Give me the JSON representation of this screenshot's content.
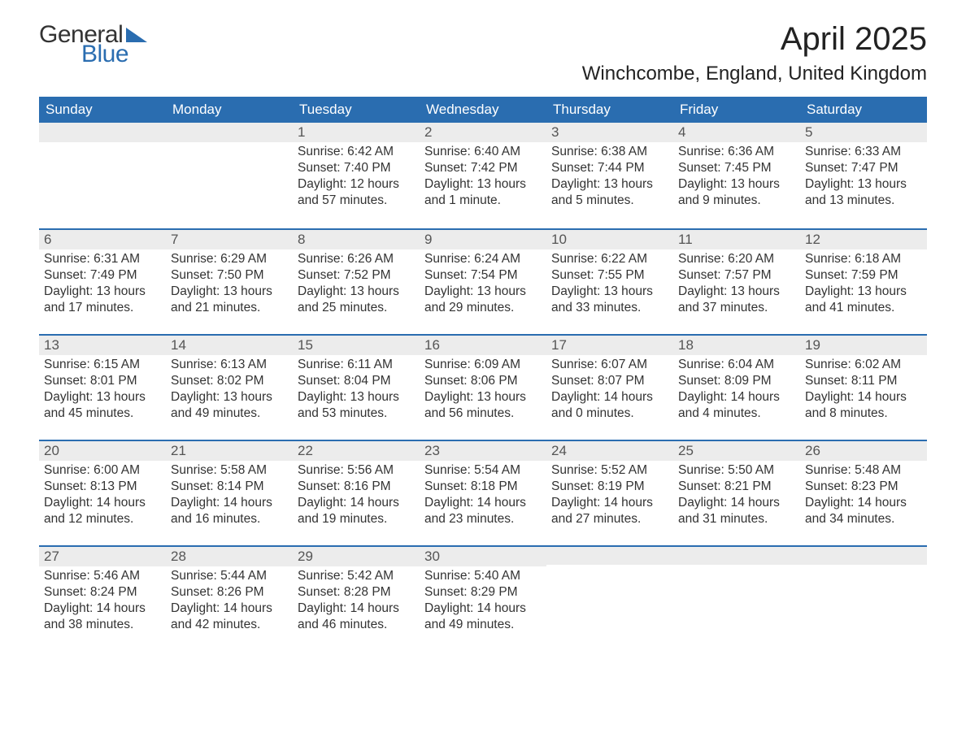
{
  "logo": {
    "word1": "General",
    "word2": "Blue",
    "text_color": "#333333",
    "accent_color": "#2a6db0"
  },
  "title": "April 2025",
  "location": "Winchcombe, England, United Kingdom",
  "colors": {
    "header_bg": "#2a6db0",
    "header_text": "#ffffff",
    "daynum_bg": "#ececec",
    "row_border": "#2a6db0",
    "body_bg": "#ffffff",
    "text": "#333333"
  },
  "weekdays": [
    "Sunday",
    "Monday",
    "Tuesday",
    "Wednesday",
    "Thursday",
    "Friday",
    "Saturday"
  ],
  "weeks": [
    [
      {
        "blank": true
      },
      {
        "blank": true
      },
      {
        "day": "1",
        "sunrise": "Sunrise: 6:42 AM",
        "sunset": "Sunset: 7:40 PM",
        "daylight1": "Daylight: 12 hours",
        "daylight2": "and 57 minutes."
      },
      {
        "day": "2",
        "sunrise": "Sunrise: 6:40 AM",
        "sunset": "Sunset: 7:42 PM",
        "daylight1": "Daylight: 13 hours",
        "daylight2": "and 1 minute."
      },
      {
        "day": "3",
        "sunrise": "Sunrise: 6:38 AM",
        "sunset": "Sunset: 7:44 PM",
        "daylight1": "Daylight: 13 hours",
        "daylight2": "and 5 minutes."
      },
      {
        "day": "4",
        "sunrise": "Sunrise: 6:36 AM",
        "sunset": "Sunset: 7:45 PM",
        "daylight1": "Daylight: 13 hours",
        "daylight2": "and 9 minutes."
      },
      {
        "day": "5",
        "sunrise": "Sunrise: 6:33 AM",
        "sunset": "Sunset: 7:47 PM",
        "daylight1": "Daylight: 13 hours",
        "daylight2": "and 13 minutes."
      }
    ],
    [
      {
        "day": "6",
        "sunrise": "Sunrise: 6:31 AM",
        "sunset": "Sunset: 7:49 PM",
        "daylight1": "Daylight: 13 hours",
        "daylight2": "and 17 minutes."
      },
      {
        "day": "7",
        "sunrise": "Sunrise: 6:29 AM",
        "sunset": "Sunset: 7:50 PM",
        "daylight1": "Daylight: 13 hours",
        "daylight2": "and 21 minutes."
      },
      {
        "day": "8",
        "sunrise": "Sunrise: 6:26 AM",
        "sunset": "Sunset: 7:52 PM",
        "daylight1": "Daylight: 13 hours",
        "daylight2": "and 25 minutes."
      },
      {
        "day": "9",
        "sunrise": "Sunrise: 6:24 AM",
        "sunset": "Sunset: 7:54 PM",
        "daylight1": "Daylight: 13 hours",
        "daylight2": "and 29 minutes."
      },
      {
        "day": "10",
        "sunrise": "Sunrise: 6:22 AM",
        "sunset": "Sunset: 7:55 PM",
        "daylight1": "Daylight: 13 hours",
        "daylight2": "and 33 minutes."
      },
      {
        "day": "11",
        "sunrise": "Sunrise: 6:20 AM",
        "sunset": "Sunset: 7:57 PM",
        "daylight1": "Daylight: 13 hours",
        "daylight2": "and 37 minutes."
      },
      {
        "day": "12",
        "sunrise": "Sunrise: 6:18 AM",
        "sunset": "Sunset: 7:59 PM",
        "daylight1": "Daylight: 13 hours",
        "daylight2": "and 41 minutes."
      }
    ],
    [
      {
        "day": "13",
        "sunrise": "Sunrise: 6:15 AM",
        "sunset": "Sunset: 8:01 PM",
        "daylight1": "Daylight: 13 hours",
        "daylight2": "and 45 minutes."
      },
      {
        "day": "14",
        "sunrise": "Sunrise: 6:13 AM",
        "sunset": "Sunset: 8:02 PM",
        "daylight1": "Daylight: 13 hours",
        "daylight2": "and 49 minutes."
      },
      {
        "day": "15",
        "sunrise": "Sunrise: 6:11 AM",
        "sunset": "Sunset: 8:04 PM",
        "daylight1": "Daylight: 13 hours",
        "daylight2": "and 53 minutes."
      },
      {
        "day": "16",
        "sunrise": "Sunrise: 6:09 AM",
        "sunset": "Sunset: 8:06 PM",
        "daylight1": "Daylight: 13 hours",
        "daylight2": "and 56 minutes."
      },
      {
        "day": "17",
        "sunrise": "Sunrise: 6:07 AM",
        "sunset": "Sunset: 8:07 PM",
        "daylight1": "Daylight: 14 hours",
        "daylight2": "and 0 minutes."
      },
      {
        "day": "18",
        "sunrise": "Sunrise: 6:04 AM",
        "sunset": "Sunset: 8:09 PM",
        "daylight1": "Daylight: 14 hours",
        "daylight2": "and 4 minutes."
      },
      {
        "day": "19",
        "sunrise": "Sunrise: 6:02 AM",
        "sunset": "Sunset: 8:11 PM",
        "daylight1": "Daylight: 14 hours",
        "daylight2": "and 8 minutes."
      }
    ],
    [
      {
        "day": "20",
        "sunrise": "Sunrise: 6:00 AM",
        "sunset": "Sunset: 8:13 PM",
        "daylight1": "Daylight: 14 hours",
        "daylight2": "and 12 minutes."
      },
      {
        "day": "21",
        "sunrise": "Sunrise: 5:58 AM",
        "sunset": "Sunset: 8:14 PM",
        "daylight1": "Daylight: 14 hours",
        "daylight2": "and 16 minutes."
      },
      {
        "day": "22",
        "sunrise": "Sunrise: 5:56 AM",
        "sunset": "Sunset: 8:16 PM",
        "daylight1": "Daylight: 14 hours",
        "daylight2": "and 19 minutes."
      },
      {
        "day": "23",
        "sunrise": "Sunrise: 5:54 AM",
        "sunset": "Sunset: 8:18 PM",
        "daylight1": "Daylight: 14 hours",
        "daylight2": "and 23 minutes."
      },
      {
        "day": "24",
        "sunrise": "Sunrise: 5:52 AM",
        "sunset": "Sunset: 8:19 PM",
        "daylight1": "Daylight: 14 hours",
        "daylight2": "and 27 minutes."
      },
      {
        "day": "25",
        "sunrise": "Sunrise: 5:50 AM",
        "sunset": "Sunset: 8:21 PM",
        "daylight1": "Daylight: 14 hours",
        "daylight2": "and 31 minutes."
      },
      {
        "day": "26",
        "sunrise": "Sunrise: 5:48 AM",
        "sunset": "Sunset: 8:23 PM",
        "daylight1": "Daylight: 14 hours",
        "daylight2": "and 34 minutes."
      }
    ],
    [
      {
        "day": "27",
        "sunrise": "Sunrise: 5:46 AM",
        "sunset": "Sunset: 8:24 PM",
        "daylight1": "Daylight: 14 hours",
        "daylight2": "and 38 minutes."
      },
      {
        "day": "28",
        "sunrise": "Sunrise: 5:44 AM",
        "sunset": "Sunset: 8:26 PM",
        "daylight1": "Daylight: 14 hours",
        "daylight2": "and 42 minutes."
      },
      {
        "day": "29",
        "sunrise": "Sunrise: 5:42 AM",
        "sunset": "Sunset: 8:28 PM",
        "daylight1": "Daylight: 14 hours",
        "daylight2": "and 46 minutes."
      },
      {
        "day": "30",
        "sunrise": "Sunrise: 5:40 AM",
        "sunset": "Sunset: 8:29 PM",
        "daylight1": "Daylight: 14 hours",
        "daylight2": "and 49 minutes."
      },
      {
        "blank": true
      },
      {
        "blank": true
      },
      {
        "blank": true
      }
    ]
  ]
}
